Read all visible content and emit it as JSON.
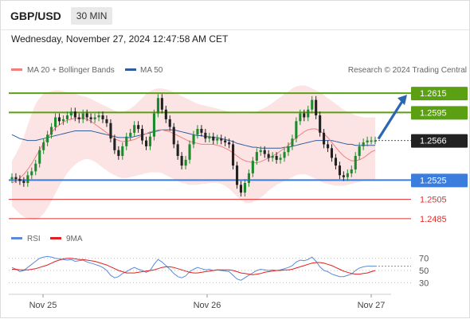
{
  "header": {
    "pair": "GBP/USD",
    "timeframe": "30 MIN"
  },
  "timestamp": "Wednesday, November 27, 2024 12:47:58 AM CET",
  "legend": {
    "bollinger": {
      "label": "MA 20 + Bollinger Bands",
      "color": "#f08080"
    },
    "ma50": {
      "label": "MA 50",
      "color": "#2f5d9e"
    }
  },
  "credit": "Research © 2024 Trading Central",
  "rsi_legend": {
    "rsi": {
      "label": "RSI",
      "color": "#5b8bd8"
    },
    "ma9": {
      "label": "9MA",
      "color": "#e02020"
    }
  },
  "chart_data": {
    "type": "candlestick",
    "ylim": [
      1.2475,
      1.2625
    ],
    "current_price": "1.2566",
    "levels": [
      {
        "value": 1.2615,
        "label": "1.2615",
        "kind": "resistance",
        "color": "#5aa012"
      },
      {
        "value": 1.2595,
        "label": "1.2595",
        "kind": "resistance",
        "color": "#5aa012"
      },
      {
        "value": 1.2525,
        "label": "1.2525",
        "kind": "pivot",
        "color": "#3b7ddd"
      },
      {
        "value": 1.2505,
        "label": "1.2505",
        "kind": "support",
        "color": "#e03030"
      },
      {
        "value": 1.2485,
        "label": "1.2485",
        "kind": "support",
        "color": "#e03030"
      }
    ],
    "x_ticks": [
      "Nov 25",
      "Nov 26",
      "Nov 27"
    ],
    "closes": [
      1.2528,
      1.2526,
      1.2524,
      1.2522,
      1.253,
      1.2534,
      1.2542,
      1.2556,
      1.2564,
      1.2572,
      1.258,
      1.259,
      1.2586,
      1.2588,
      1.2592,
      1.2596,
      1.259,
      1.2588,
      1.2594,
      1.259,
      1.2588,
      1.259,
      1.2592,
      1.2588,
      1.2584,
      1.2568,
      1.2556,
      1.255,
      1.256,
      1.257,
      1.2574,
      1.2582,
      1.2578,
      1.2566,
      1.256,
      1.257,
      1.2594,
      1.261,
      1.2598,
      1.2588,
      1.258,
      1.2562,
      1.255,
      1.254,
      1.2546,
      1.2562,
      1.2572,
      1.2578,
      1.2574,
      1.2568,
      1.257,
      1.2566,
      1.2568,
      1.2566,
      1.2564,
      1.2562,
      1.254,
      1.252,
      1.2512,
      1.2522,
      1.2532,
      1.2545,
      1.2554,
      1.2556,
      1.2552,
      1.2548,
      1.255,
      1.2546,
      1.2548,
      1.2554,
      1.256,
      1.2568,
      1.2586,
      1.2594,
      1.259,
      1.2598,
      1.2608,
      1.2592,
      1.2574,
      1.2562,
      1.2558,
      1.2548,
      1.254,
      1.253,
      1.2528,
      1.2532,
      1.2536,
      1.255,
      1.256,
      1.2564,
      1.2566,
      1.2566,
      1.2566
    ],
    "ma20": [
      1.2522,
      1.2524,
      1.2527,
      1.2531,
      1.2536,
      1.2542,
      1.2549,
      1.2556,
      1.2563,
      1.2569,
      1.2574,
      1.2579,
      1.2582,
      1.2585,
      1.2587,
      1.2588,
      1.2589,
      1.2589,
      1.2589,
      1.2588,
      1.2586,
      1.2583,
      1.258,
      1.2577,
      1.2574,
      1.2571,
      1.2568,
      1.2566,
      1.2565,
      1.2565,
      1.2566,
      1.2567,
      1.2569,
      1.2571,
      1.2573,
      1.2575,
      1.2576,
      1.2577,
      1.2577,
      1.2576,
      1.2575,
      1.2573,
      1.2571,
      1.2569,
      1.2567,
      1.2565,
      1.2564,
      1.2563,
      1.2562,
      1.2562,
      1.2562,
      1.2562,
      1.2561,
      1.256,
      1.2558,
      1.2556,
      1.2553,
      1.255,
      1.2547,
      1.2545,
      1.2544,
      1.2543,
      1.2543,
      1.2544,
      1.2546,
      1.2548,
      1.255,
      1.2552,
      1.2555,
      1.2558,
      1.2561,
      1.2565,
      1.2569,
      1.2572,
      1.2575,
      1.2577,
      1.2578,
      1.2578,
      1.2576,
      1.2573,
      1.2569,
      1.2564,
      1.2559,
      1.2554,
      1.255,
      1.2547,
      1.2545,
      1.2545,
      1.2546,
      1.2548,
      1.2551,
      1.2554,
      1.2556
    ],
    "bb_upper": [
      1.2545,
      1.2552,
      1.256,
      1.257,
      1.2582,
      1.2594,
      1.2604,
      1.261,
      1.2614,
      1.2616,
      1.2617,
      1.2618,
      1.2618,
      1.2617,
      1.2616,
      1.2615,
      1.2614,
      1.2613,
      1.2612,
      1.2611,
      1.2609,
      1.2607,
      1.2605,
      1.2603,
      1.2601,
      1.2599,
      1.2597,
      1.2596,
      1.2596,
      1.2597,
      1.2599,
      1.2602,
      1.2606,
      1.261,
      1.2614,
      1.2617,
      1.2619,
      1.262,
      1.262,
      1.2619,
      1.2618,
      1.2616,
      1.2614,
      1.2612,
      1.261,
      1.2608,
      1.2606,
      1.2604,
      1.2603,
      1.2602,
      1.2601,
      1.26,
      1.2599,
      1.2598,
      1.2597,
      1.2596,
      1.2595,
      1.2594,
      1.2594,
      1.2594,
      1.2594,
      1.2595,
      1.2596,
      1.2598,
      1.26,
      1.2602,
      1.2605,
      1.2608,
      1.2611,
      1.2614,
      1.2617,
      1.262,
      1.2622,
      1.2623,
      1.2623,
      1.2622,
      1.262,
      1.2618,
      1.2616,
      1.2613,
      1.261,
      1.2607,
      1.2604,
      1.2601,
      1.2598,
      1.2596,
      1.2594,
      1.2592,
      1.2591,
      1.259,
      1.259,
      1.259,
      1.259
    ],
    "bb_lower": [
      1.2498,
      1.2494,
      1.249,
      1.2487,
      1.2485,
      1.2484,
      1.2484,
      1.2486,
      1.249,
      1.2496,
      1.2503,
      1.2511,
      1.2519,
      1.2526,
      1.2532,
      1.2537,
      1.2541,
      1.2544,
      1.2546,
      1.2547,
      1.2546,
      1.2544,
      1.2541,
      1.2538,
      1.2535,
      1.2532,
      1.253,
      1.2528,
      1.2527,
      1.2527,
      1.2528,
      1.2529,
      1.253,
      1.2531,
      1.2532,
      1.2533,
      1.2533,
      1.2533,
      1.2532,
      1.253,
      1.2528,
      1.2526,
      1.2524,
      1.2522,
      1.2521,
      1.252,
      1.252,
      1.252,
      1.2521,
      1.2521,
      1.2522,
      1.2522,
      1.2522,
      1.2521,
      1.2519,
      1.2516,
      1.2512,
      1.2508,
      1.2504,
      1.2502,
      1.2501,
      1.2502,
      1.2504,
      1.2507,
      1.251,
      1.2514,
      1.2517,
      1.252,
      1.2522,
      1.2524,
      1.2526,
      1.2528,
      1.253,
      1.2531,
      1.2531,
      1.253,
      1.2528,
      1.2526,
      1.2524,
      1.2522,
      1.2521,
      1.252,
      1.2519,
      1.2519,
      1.2519,
      1.252,
      1.2521,
      1.2522,
      1.2523,
      1.2524,
      1.2524,
      1.2524,
      1.2524
    ],
    "ma50": [
      1.2572,
      1.257,
      1.2568,
      1.2567,
      1.2566,
      1.2566,
      1.2566,
      1.2567,
      1.2568,
      1.2569,
      1.257,
      1.2571,
      1.2572,
      1.2573,
      1.2574,
      1.2575,
      1.2576,
      1.2576,
      1.2576,
      1.2576,
      1.2576,
      1.2575,
      1.2574,
      1.2573,
      1.2572,
      1.2571,
      1.257,
      1.2569,
      1.2569,
      1.2569,
      1.2569,
      1.257,
      1.2571,
      1.2572,
      1.2573,
      1.2574,
      1.2575,
      1.2576,
      1.2577,
      1.2577,
      1.2577,
      1.2577,
      1.2576,
      1.2575,
      1.2574,
      1.2573,
      1.2572,
      1.2571,
      1.2571,
      1.257,
      1.257,
      1.2569,
      1.2569,
      1.2568,
      1.2567,
      1.2566,
      1.2565,
      1.2563,
      1.2562,
      1.2561,
      1.256,
      1.2559,
      1.2559,
      1.2558,
      1.2558,
      1.2558,
      1.2558,
      1.2558,
      1.2558,
      1.2559,
      1.2559,
      1.256,
      1.2561,
      1.2562,
      1.2563,
      1.2564,
      1.2565,
      1.2566,
      1.2566,
      1.2566,
      1.2566,
      1.2566,
      1.2565,
      1.2564,
      1.2563,
      1.2562,
      1.2562,
      1.2561,
      1.2561,
      1.2561,
      1.2561,
      1.2561,
      1.2561
    ],
    "forecast_target": 1.2615,
    "rsi": {
      "ylim": [
        20,
        80
      ],
      "ticks": [
        70,
        50,
        30
      ],
      "rsi": [
        55,
        52,
        48,
        50,
        55,
        60,
        65,
        70,
        72,
        73,
        72,
        70,
        69,
        68,
        67,
        68,
        65,
        66,
        67,
        64,
        62,
        60,
        58,
        55,
        50,
        42,
        38,
        40,
        45,
        48,
        52,
        55,
        52,
        50,
        47,
        50,
        60,
        68,
        64,
        58,
        52,
        45,
        40,
        38,
        41,
        48,
        52,
        55,
        53,
        51,
        52,
        50,
        51,
        50,
        49,
        48,
        42,
        36,
        34,
        38,
        42,
        46,
        50,
        52,
        51,
        50,
        51,
        50,
        51,
        53,
        55,
        58,
        64,
        67,
        66,
        68,
        72,
        65,
        56,
        50,
        48,
        44,
        42,
        40,
        40,
        42,
        44,
        50,
        54,
        56,
        57,
        57,
        57
      ],
      "ma9": [
        52,
        52,
        51,
        51,
        51,
        52,
        53,
        55,
        57,
        59,
        62,
        65,
        67,
        69,
        70,
        70,
        69,
        68,
        68,
        67,
        66,
        65,
        63,
        61,
        59,
        56,
        53,
        50,
        48,
        46,
        46,
        46,
        47,
        48,
        49,
        50,
        51,
        53,
        55,
        56,
        56,
        55,
        53,
        51,
        49,
        47,
        46,
        46,
        47,
        48,
        49,
        50,
        51,
        51,
        51,
        51,
        50,
        48,
        46,
        45,
        44,
        43,
        44,
        45,
        47,
        48,
        49,
        50,
        50,
        51,
        51,
        52,
        54,
        56,
        58,
        60,
        62,
        63,
        63,
        62,
        60,
        58,
        55,
        52,
        49,
        47,
        45,
        44,
        44,
        45,
        46,
        48,
        50
      ]
    }
  }
}
